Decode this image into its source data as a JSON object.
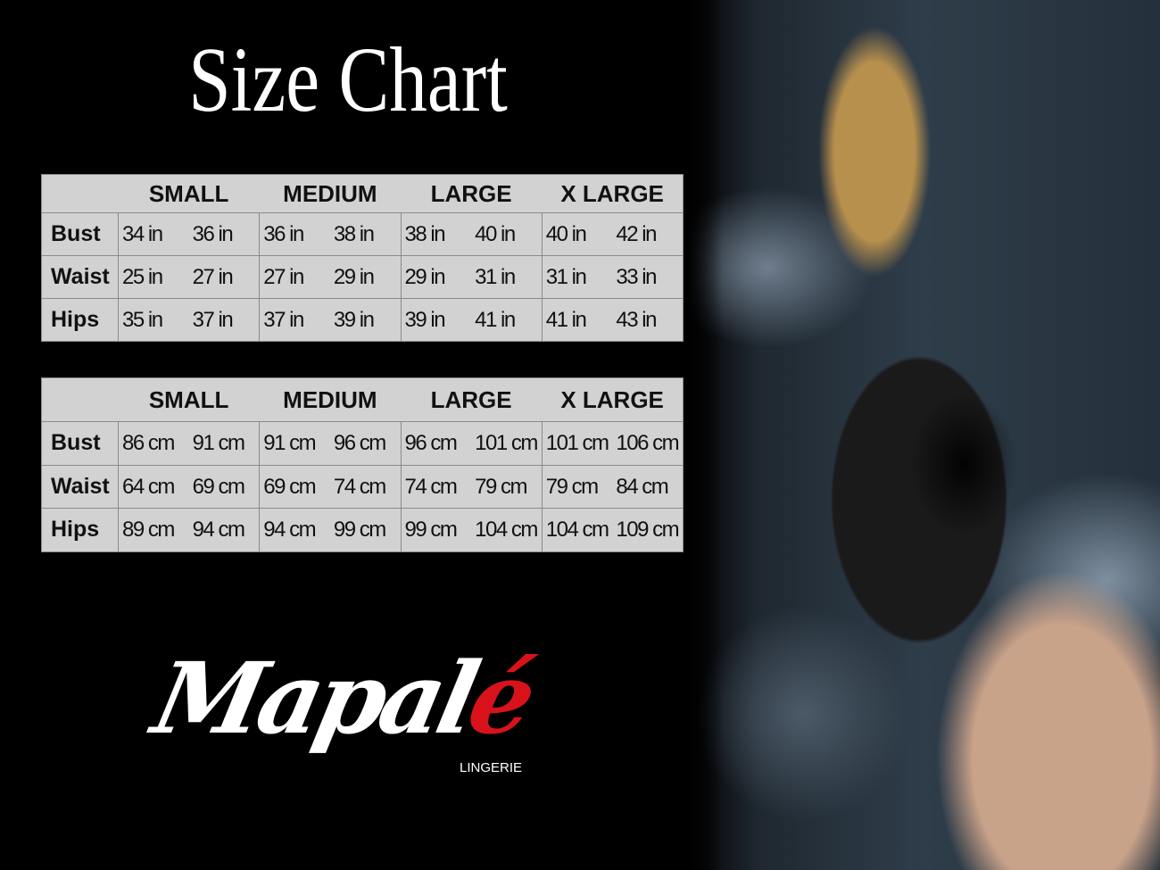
{
  "title": "Size Chart",
  "sizes": [
    "SMALL",
    "MEDIUM",
    "LARGE",
    "X LARGE"
  ],
  "inches_table": {
    "rows": [
      {
        "label": "Bust",
        "values": [
          "34 in",
          "36 in",
          "36 in",
          "38 in",
          "38 in",
          "40 in",
          "40 in",
          "42 in"
        ]
      },
      {
        "label": "Waist",
        "values": [
          "25 in",
          "27 in",
          "27 in",
          "29 in",
          "29 in",
          "31 in",
          "31 in",
          "33 in"
        ]
      },
      {
        "label": "Hips",
        "values": [
          "35 in",
          "37 in",
          "37 in",
          "39 in",
          "39 in",
          "41 in",
          "41 in",
          "43 in"
        ]
      }
    ]
  },
  "cm_table": {
    "rows": [
      {
        "label": "Bust",
        "values": [
          "86 cm",
          "91 cm",
          "91 cm",
          "96 cm",
          "96 cm",
          "101 cm",
          "101 cm",
          "106 cm"
        ]
      },
      {
        "label": "Waist",
        "values": [
          "64 cm",
          "69 cm",
          "69 cm",
          "74 cm",
          "74 cm",
          "79  cm",
          "79 cm",
          "84 cm"
        ]
      },
      {
        "label": "Hips",
        "values": [
          "89 cm",
          "94 cm",
          "94 cm",
          "99 cm",
          "99 cm",
          "104 cm",
          "104 cm",
          "109 cm"
        ]
      }
    ]
  },
  "logo": {
    "main": "Mapal",
    "accent": "é",
    "sub": "LINGERIE",
    "accent_color": "#d8121b"
  }
}
